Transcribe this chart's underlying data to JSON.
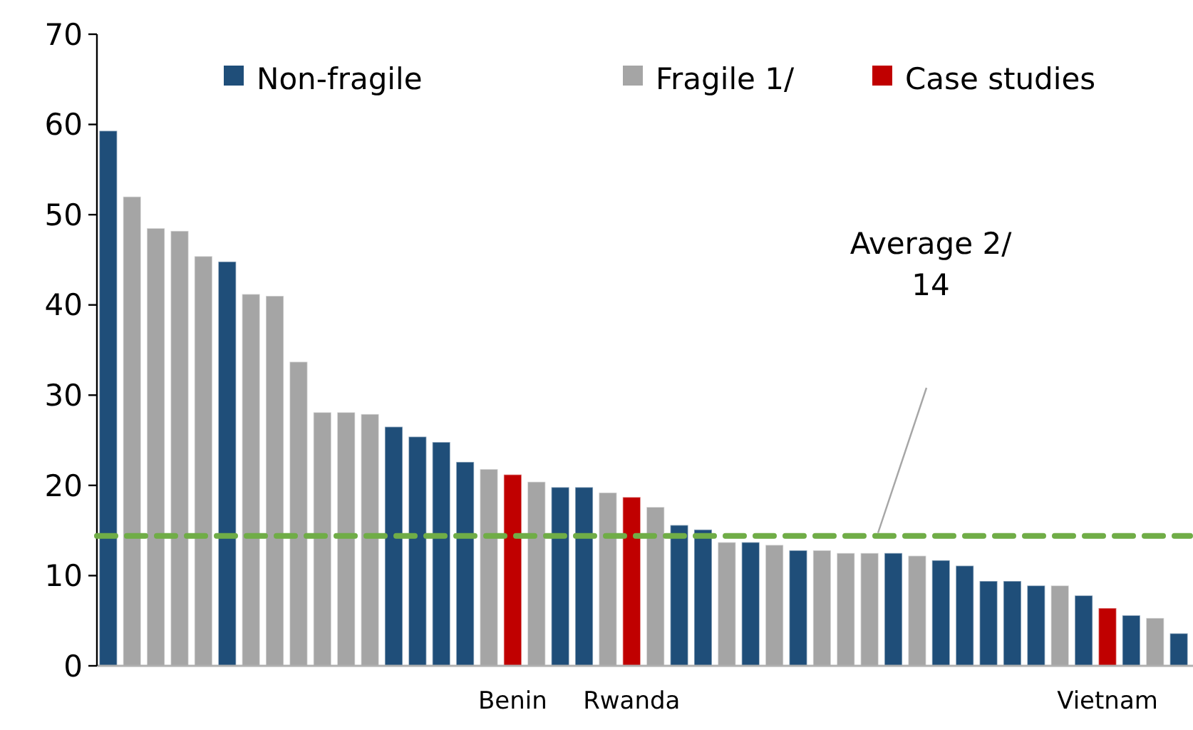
{
  "chart_data": {
    "type": "bar",
    "categories": [
      null,
      null,
      null,
      null,
      null,
      null,
      null,
      null,
      null,
      null,
      null,
      null,
      null,
      null,
      null,
      null,
      null,
      "Benin",
      null,
      null,
      null,
      null,
      "Rwanda",
      null,
      null,
      null,
      null,
      null,
      null,
      null,
      null,
      null,
      null,
      null,
      null,
      null,
      null,
      null,
      null,
      null,
      null,
      null,
      "Vietnam",
      null,
      null,
      null
    ],
    "series": [
      {
        "name": "Non-fragile",
        "color": "#1f4e79",
        "values": [
          59.3,
          null,
          null,
          null,
          null,
          44.8,
          null,
          null,
          null,
          null,
          null,
          null,
          26.5,
          25.4,
          24.8,
          22.6,
          null,
          null,
          null,
          19.8,
          19.8,
          null,
          null,
          null,
          15.6,
          15.1,
          null,
          13.7,
          null,
          12.8,
          null,
          null,
          null,
          12.5,
          null,
          11.7,
          11.1,
          9.4,
          9.4,
          8.9,
          null,
          7.8,
          null,
          5.6,
          null,
          3.6
        ]
      },
      {
        "name": "Fragile 1/",
        "color": "#a5a5a5",
        "values": [
          null,
          52,
          48.5,
          48.2,
          45.4,
          null,
          41.2,
          41,
          33.7,
          28.1,
          28.1,
          27.9,
          null,
          null,
          null,
          null,
          21.8,
          null,
          20.4,
          null,
          null,
          19.2,
          null,
          17.6,
          null,
          null,
          13.7,
          null,
          13.4,
          null,
          12.8,
          12.5,
          12.5,
          null,
          12.2,
          null,
          null,
          null,
          null,
          null,
          8.9,
          null,
          null,
          null,
          5.3,
          null
        ]
      },
      {
        "name": "Case studies",
        "color": "#c00000",
        "values": [
          null,
          null,
          null,
          null,
          null,
          null,
          null,
          null,
          null,
          null,
          null,
          null,
          null,
          null,
          null,
          null,
          null,
          21.2,
          null,
          null,
          null,
          null,
          18.7,
          null,
          null,
          null,
          null,
          null,
          null,
          null,
          null,
          null,
          null,
          null,
          null,
          null,
          null,
          null,
          null,
          null,
          null,
          null,
          6.4,
          null,
          null,
          null
        ]
      }
    ],
    "ylim": [
      0,
      70
    ],
    "yticks": [
      0,
      10,
      20,
      30,
      40,
      50,
      60,
      70
    ],
    "legend": "top right",
    "annotations": [
      "Average 2/\n14"
    ],
    "ref_lines": [
      {
        "axis": "y",
        "value": 14.4,
        "color": "#70ad47",
        "line_style": "dashed"
      }
    ]
  }
}
